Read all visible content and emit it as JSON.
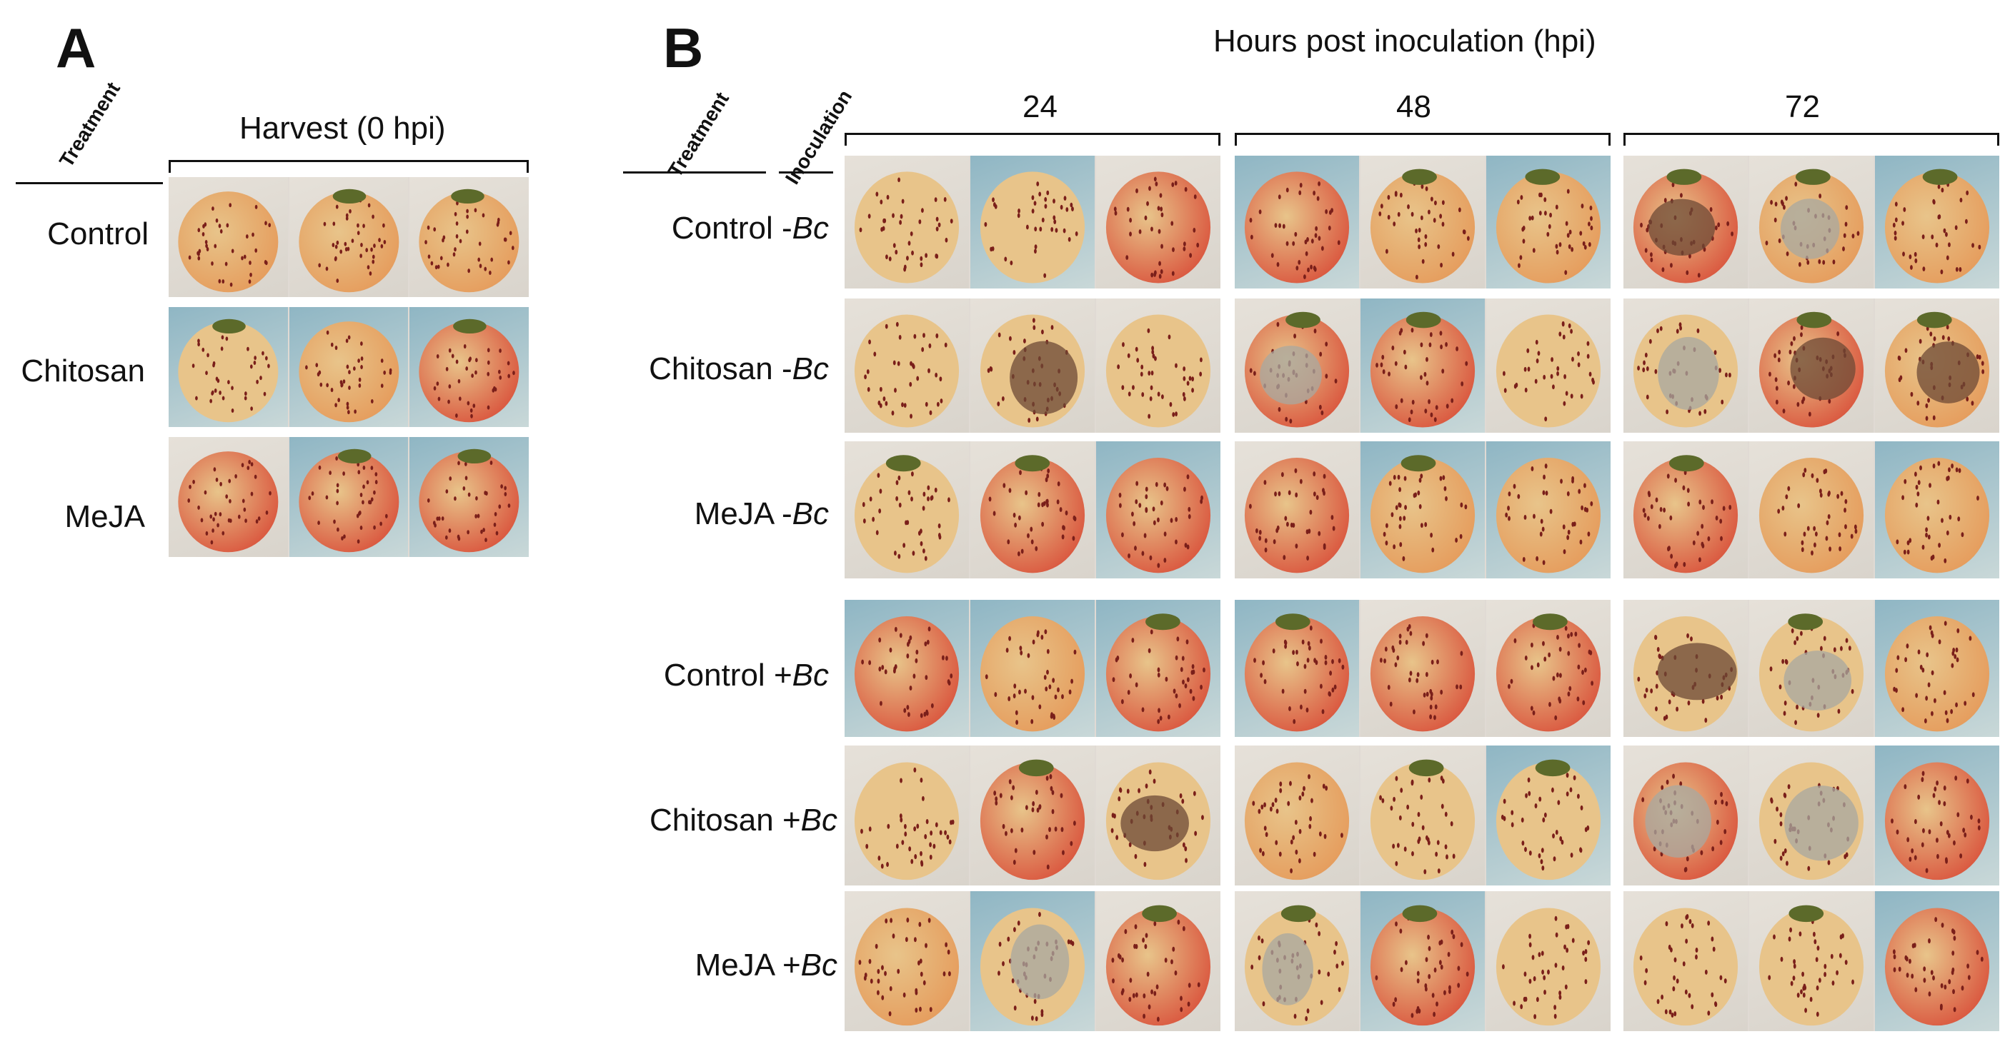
{
  "panelA": {
    "letter": "A",
    "treatment_label": "Treatment",
    "title": "Harvest (0 hpi)",
    "rows": [
      {
        "label": "Control"
      },
      {
        "label": "Chitosan"
      },
      {
        "label": "MeJA"
      }
    ]
  },
  "panelB": {
    "letter": "B",
    "treatment_label": "Treatment",
    "inoculation_label": "Inoculation",
    "title": "Hours post inoculation (hpi)",
    "timepoints": [
      "24",
      "48",
      "72"
    ],
    "rows": [
      {
        "treatment": "Control",
        "sign": "-",
        "pathogen": "Bc"
      },
      {
        "treatment": "Chitosan",
        "sign": "-",
        "pathogen": "Bc"
      },
      {
        "treatment": "MeJA",
        "sign": "-",
        "pathogen": "Bc"
      },
      {
        "treatment": "Control",
        "sign": "+",
        "pathogen": "Bc"
      },
      {
        "treatment": "Chitosan",
        "sign": "+",
        "pathogen": "Bc"
      },
      {
        "treatment": "MeJA",
        "sign": "+",
        "pathogen": "Bc"
      }
    ]
  },
  "photo_colors": {
    "background_light": "#d9d4cc",
    "background_blue": "#8fb6c4",
    "fruit_pale": "#e8c48a",
    "fruit_orange": "#e59a5a",
    "fruit_red": "#d9503a",
    "seed": "#7a1f1a",
    "calyx": "#5c6a2a",
    "mold_grey": "#a8a8a0",
    "rot_brown": "#6e4a36"
  }
}
